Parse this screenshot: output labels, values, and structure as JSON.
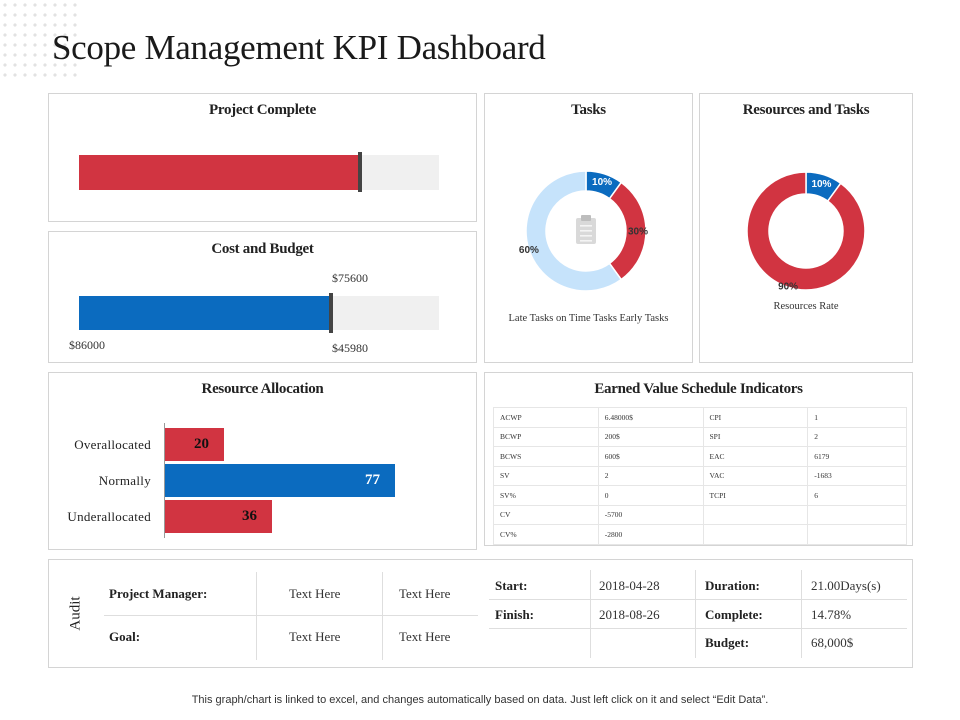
{
  "page": {
    "title": "Scope Management KPI Dashboard",
    "footer": "This graph/chart is linked to excel, and changes automatically based on data. Just left click on it and select “Edit Data”."
  },
  "colors": {
    "red": "#d13441",
    "blue": "#0b6bbf",
    "light_blue": "#c6e3fb",
    "track": "#f0f0f0"
  },
  "project_complete": {
    "title": "Project Complete",
    "value_fraction": 0.78
  },
  "cost_budget": {
    "title": "Cost and Budget",
    "target_label": "$75600",
    "left_label": "$86000",
    "bottom_label": "$45980",
    "fill_fraction": 0.7
  },
  "chart_data": [
    {
      "type": "pie",
      "title": "Tasks",
      "subtitle": "Late Tasks on Time Tasks Early Tasks",
      "slices": [
        {
          "label": "10%",
          "value": 10,
          "color": "#0b6bbf"
        },
        {
          "label": "30%",
          "value": 30,
          "color": "#d13441"
        },
        {
          "label": "60%",
          "value": 60,
          "color": "#c6e3fb"
        }
      ],
      "center_icon": "clipboard-icon"
    },
    {
      "type": "pie",
      "title": "Resources and Tasks",
      "subtitle": "Resources Rate",
      "slices": [
        {
          "label": "10%",
          "value": 10,
          "color": "#0b6bbf"
        },
        {
          "label": "90%",
          "value": 90,
          "color": "#d13441"
        }
      ]
    },
    {
      "type": "bar",
      "title": "Resource Allocation",
      "orientation": "horizontal",
      "categories": [
        "Overallocated",
        "Normally",
        "Underallocated"
      ],
      "values": [
        20,
        77,
        36
      ],
      "colors": [
        "#d13441",
        "#0b6bbf",
        "#d13441"
      ],
      "xlim": [
        0,
        100
      ]
    }
  ],
  "earned_value": {
    "title": "Earned Value Schedule Indicators",
    "rows": [
      [
        "ACWP",
        "6.48000$",
        "CPI",
        "1"
      ],
      [
        "BCWP",
        "200$",
        "SPI",
        "2"
      ],
      [
        "BCWS",
        "600$",
        "EAC",
        "6179"
      ],
      [
        "SV",
        "2",
        "VAC",
        "-1683"
      ],
      [
        "SV%",
        "0",
        "TCPI",
        "6"
      ],
      [
        "CV",
        "-5700",
        "",
        ""
      ],
      [
        "CV%",
        "-2800",
        "",
        ""
      ]
    ]
  },
  "audit": {
    "label": "Audit",
    "project_manager_key": "Project Manager:",
    "goal_key": "Goal:",
    "pm_values": [
      "Text Here",
      "Text Here"
    ],
    "goal_values": [
      "Text Here",
      "Text Here"
    ],
    "start_key": "Start:",
    "start_value": "2018-04-28",
    "finish_key": "Finish:",
    "finish_value": "2018-08-26",
    "duration_key": "Duration:",
    "duration_value": "21.00Days(s)",
    "complete_key": "Complete:",
    "complete_value": "14.78%",
    "budget_key": "Budget:",
    "budget_value": "68,000$"
  }
}
